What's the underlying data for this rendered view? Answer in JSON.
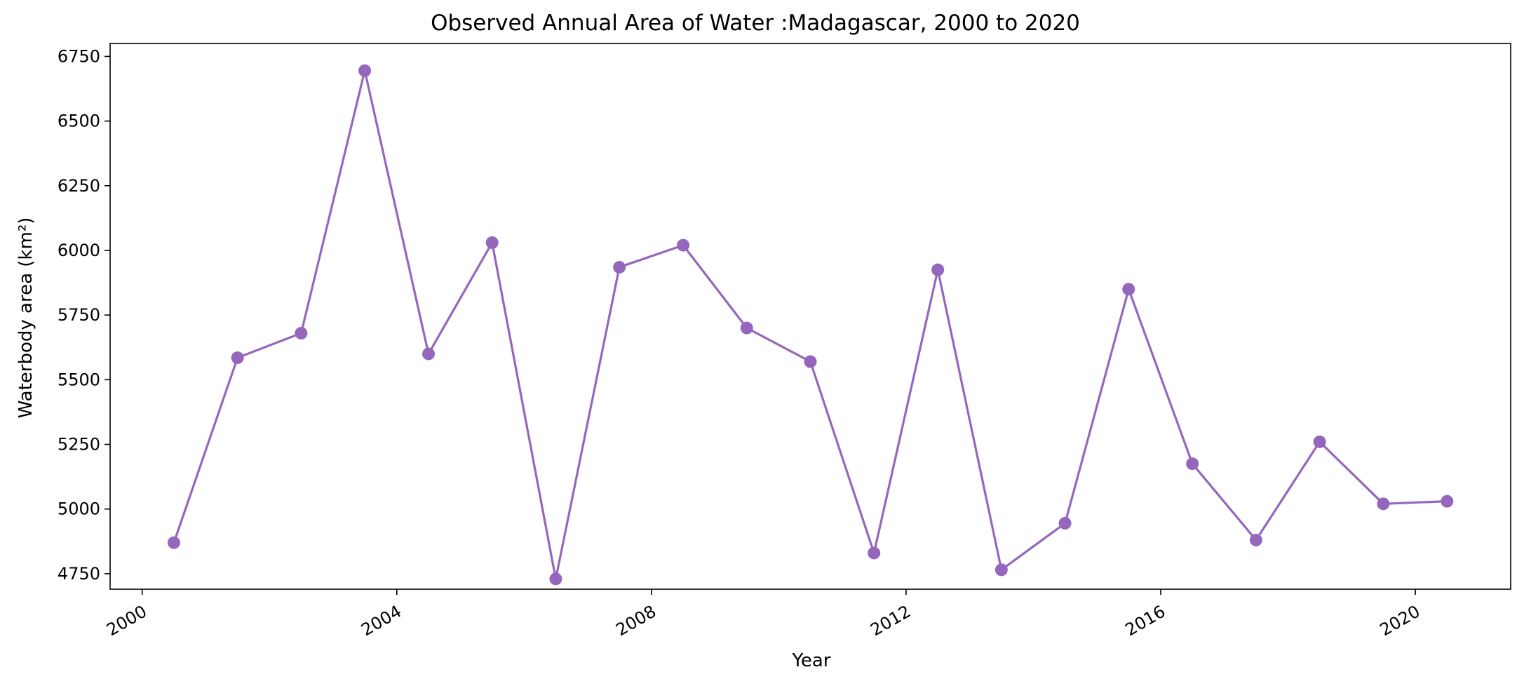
{
  "chart_data": {
    "type": "line",
    "title": "Observed Annual Area of Water :Madagascar, 2000 to 2020",
    "xlabel": "Year",
    "ylabel": "Waterbody area (km²)",
    "x_axis_type": "date",
    "xlim": [
      "1999-07-01",
      "2021-07-01"
    ],
    "ylim": [
      4690,
      6800
    ],
    "x_ticks": [
      "2000",
      "2004",
      "2008",
      "2012",
      "2016",
      "2020"
    ],
    "y_ticks": [
      4750,
      5000,
      5250,
      5500,
      5750,
      6000,
      6250,
      6500,
      6750
    ],
    "grid": false,
    "legend": false,
    "series": [
      {
        "color": "#9467bd",
        "marker": "circle",
        "x": [
          "2000-07-01",
          "2001-07-01",
          "2002-07-01",
          "2003-07-01",
          "2004-07-01",
          "2005-07-01",
          "2006-07-01",
          "2007-07-01",
          "2008-07-01",
          "2009-07-01",
          "2010-07-01",
          "2011-07-01",
          "2012-07-01",
          "2013-07-01",
          "2014-07-01",
          "2015-07-01",
          "2016-07-01",
          "2017-07-01",
          "2018-07-01",
          "2019-07-01",
          "2020-07-01"
        ],
        "values": [
          4870,
          5585,
          5680,
          6695,
          5600,
          6030,
          4730,
          5935,
          6020,
          5700,
          5570,
          4830,
          5925,
          4765,
          4945,
          5850,
          5175,
          4880,
          5260,
          5020,
          5030
        ]
      }
    ]
  }
}
